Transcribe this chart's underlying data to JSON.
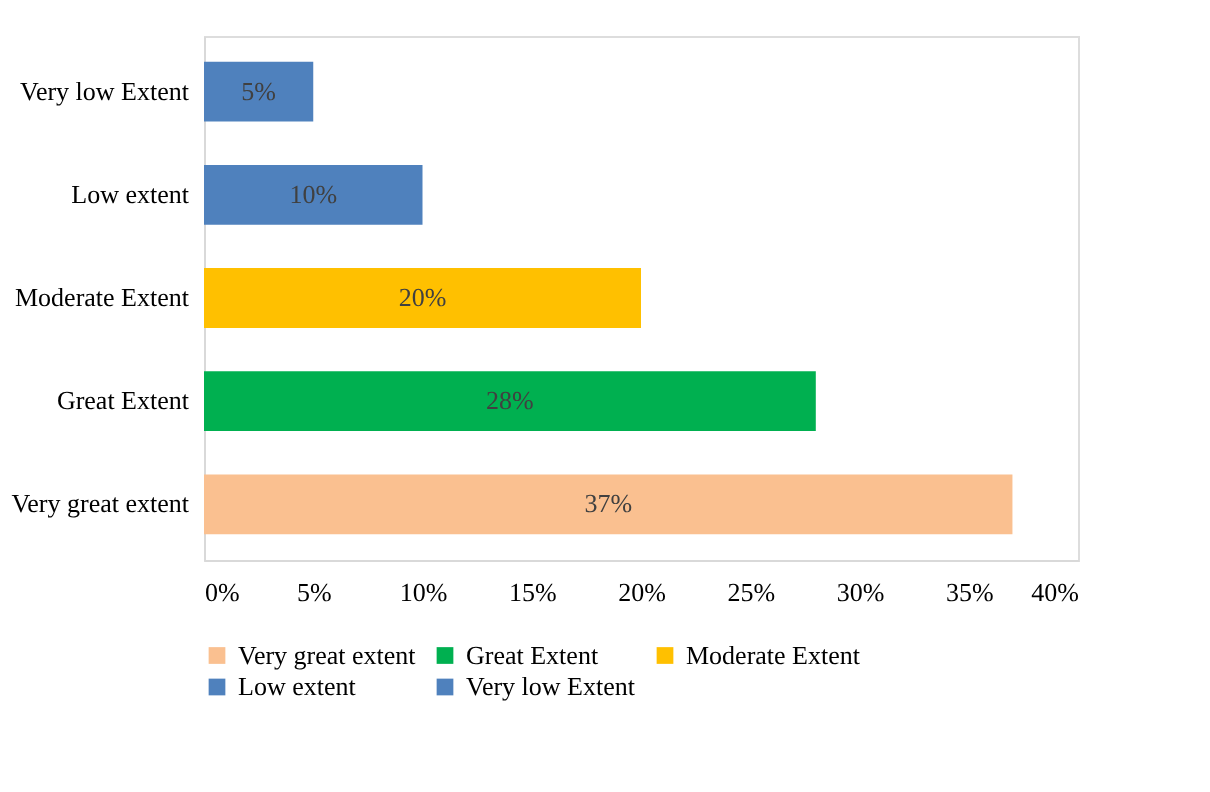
{
  "chart_data": {
    "type": "bar",
    "orientation": "horizontal",
    "categories": [
      "Very low Extent",
      "Low extent",
      "Moderate Extent",
      "Great Extent",
      "Very great extent"
    ],
    "series": [
      {
        "name": "Very great extent",
        "color": "#fac090",
        "values": [
          null,
          null,
          null,
          null,
          37
        ],
        "value_labels": [
          null,
          null,
          null,
          null,
          "37%"
        ]
      },
      {
        "name": "Great Extent",
        "color": "#00b050",
        "values": [
          null,
          null,
          null,
          28,
          null
        ],
        "value_labels": [
          null,
          null,
          null,
          "28%",
          null
        ]
      },
      {
        "name": "Moderate Extent",
        "color": "#ffc000",
        "values": [
          null,
          null,
          20,
          null,
          null
        ],
        "value_labels": [
          null,
          null,
          "20%",
          null,
          null
        ]
      },
      {
        "name": "Low extent",
        "color": "#4f81bd",
        "values": [
          null,
          10,
          null,
          null,
          null
        ],
        "value_labels": [
          null,
          "10%",
          null,
          null,
          null
        ]
      },
      {
        "name": "Very low Extent",
        "color": "#4f81bd",
        "values": [
          5,
          null,
          null,
          null,
          null
        ],
        "value_labels": [
          "5%",
          null,
          null,
          null,
          null
        ]
      }
    ],
    "xlim": [
      0,
      40
    ],
    "xticks": [
      {
        "value": 0,
        "label": "0%"
      },
      {
        "value": 5,
        "label": "5%"
      },
      {
        "value": 10,
        "label": "10%"
      },
      {
        "value": 15,
        "label": "15%"
      },
      {
        "value": 20,
        "label": "20%"
      },
      {
        "value": 25,
        "label": "25%"
      },
      {
        "value": 30,
        "label": "30%"
      },
      {
        "value": 35,
        "label": "35%"
      },
      {
        "value": 40,
        "label": "40%"
      }
    ],
    "grid": false,
    "legend": "bottom"
  }
}
